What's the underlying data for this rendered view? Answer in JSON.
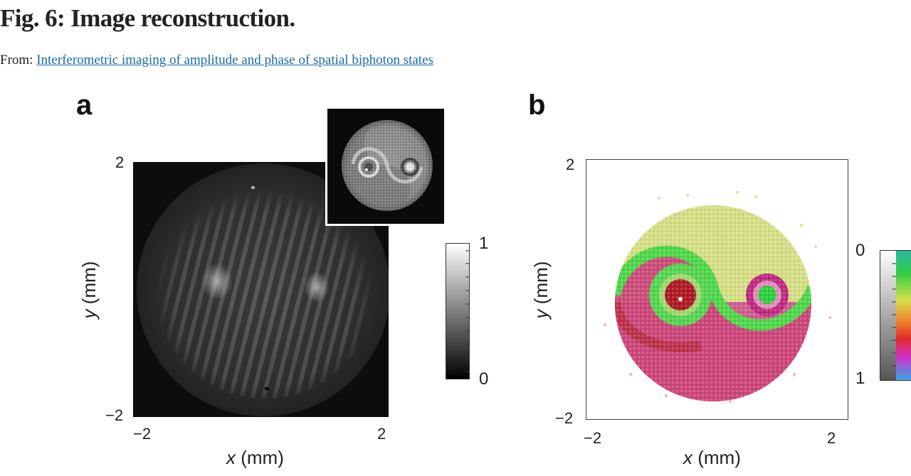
{
  "figure": {
    "title": "Fig. 6: Image reconstruction.",
    "from_prefix": "From:",
    "from_link": "Interferometric imaging of amplitude and phase of spatial biphoton states"
  },
  "panel_a": {
    "letter": "a",
    "x_axis": {
      "var": "x",
      "unit": "(mm)",
      "ticks": [
        "−2",
        "2"
      ]
    },
    "y_axis": {
      "var": "y",
      "unit": "(mm)",
      "ticks": [
        "2",
        "−2"
      ]
    },
    "colorbar": {
      "max_label": "1",
      "min_label": "0",
      "colormap": "grayscale"
    }
  },
  "panel_b": {
    "letter": "b",
    "x_axis": {
      "var": "x",
      "unit": "(mm)",
      "ticks": [
        "−2",
        "2"
      ]
    },
    "y_axis": {
      "var": "y",
      "unit": "(mm)",
      "ticks": [
        "2",
        "−2"
      ]
    },
    "colorbar": {
      "top_label": "0",
      "bottom_label": "1",
      "colormap": "phase"
    }
  },
  "colors": {
    "title": "#222222",
    "link": "#1a6aa8",
    "green": "#3fcf46",
    "magenta": "#cf2f78",
    "yellow": "#d9e27a",
    "red": "#b71f2a"
  }
}
